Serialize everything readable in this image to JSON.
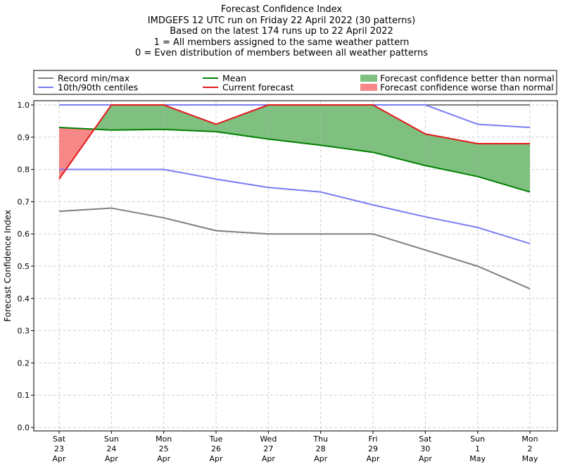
{
  "title_lines": [
    "Forecast Confidence Index",
    "IMDGEFS 12 UTC run on Friday 22 April 2022 (30 patterns)",
    "Based on the latest 174 runs up to 22 April 2022",
    "1 = All members assigned to the same weather pattern",
    "0 = Even distribution of members between all weather patterns"
  ],
  "colors": {
    "record": "#7f7f7f",
    "centile": "#7b7bf5",
    "mean": "#008000",
    "current": "#e21a1a",
    "better_fill": "#7fbf7f",
    "worse_fill": "#f88787",
    "grid": "#cfcfcf"
  },
  "chart_data": {
    "type": "line",
    "ylabel": "Forecast Confidence Index",
    "xlabel": "",
    "ylim": [
      0,
      1.0
    ],
    "y_ticks": [
      "0.0",
      "0.1",
      "0.2",
      "0.3",
      "0.4",
      "0.5",
      "0.6",
      "0.7",
      "0.8",
      "0.9",
      "1.0"
    ],
    "grid": true,
    "legend_position": "top",
    "categories": [
      [
        "Sat",
        "23",
        "Apr"
      ],
      [
        "Sun",
        "24",
        "Apr"
      ],
      [
        "Mon",
        "25",
        "Apr"
      ],
      [
        "Tue",
        "26",
        "Apr"
      ],
      [
        "Wed",
        "27",
        "Apr"
      ],
      [
        "Thu",
        "28",
        "Apr"
      ],
      [
        "Fri",
        "29",
        "Apr"
      ],
      [
        "Sat",
        "30",
        "Apr"
      ],
      [
        "Sun",
        "1",
        "May"
      ],
      [
        "Mon",
        "2",
        "May"
      ]
    ],
    "series": [
      {
        "name": "Record min/max",
        "key": "record_max",
        "values": [
          1.0,
          1.0,
          1.0,
          1.0,
          1.0,
          1.0,
          1.0,
          1.0,
          1.0,
          1.0
        ]
      },
      {
        "key": "record_min",
        "values": [
          0.67,
          0.68,
          0.65,
          0.61,
          0.6,
          0.6,
          0.6,
          0.55,
          0.5,
          0.43
        ]
      },
      {
        "name": "10th/90th centiles",
        "key": "p90",
        "values": [
          1.0,
          1.0,
          1.0,
          1.0,
          1.0,
          1.0,
          1.0,
          1.0,
          0.94,
          0.93
        ]
      },
      {
        "key": "p10",
        "values": [
          0.8,
          0.8,
          0.8,
          0.77,
          0.744,
          0.73,
          0.69,
          0.653,
          0.62,
          0.57
        ]
      },
      {
        "name": "Mean",
        "key": "mean",
        "values": [
          0.93,
          0.922,
          0.924,
          0.917,
          0.894,
          0.875,
          0.853,
          0.812,
          0.778,
          0.73
        ]
      },
      {
        "name": "Current forecast",
        "key": "current",
        "values": [
          0.77,
          1.0,
          1.0,
          0.94,
          1.0,
          1.0,
          1.0,
          0.91,
          0.88,
          0.88
        ]
      }
    ],
    "legend": [
      {
        "label": "Record min/max",
        "kind": "line",
        "color_key": "record"
      },
      {
        "label": "Mean",
        "kind": "line",
        "color_key": "mean"
      },
      {
        "label": "Forecast confidence better than normal",
        "kind": "patch",
        "color_key": "better_fill"
      },
      {
        "label": "10th/90th centiles",
        "kind": "line",
        "color_key": "centile"
      },
      {
        "label": "Current forecast",
        "kind": "line",
        "color_key": "current"
      },
      {
        "label": "Forecast confidence worse than normal",
        "kind": "patch",
        "color_key": "worse_fill"
      }
    ]
  }
}
